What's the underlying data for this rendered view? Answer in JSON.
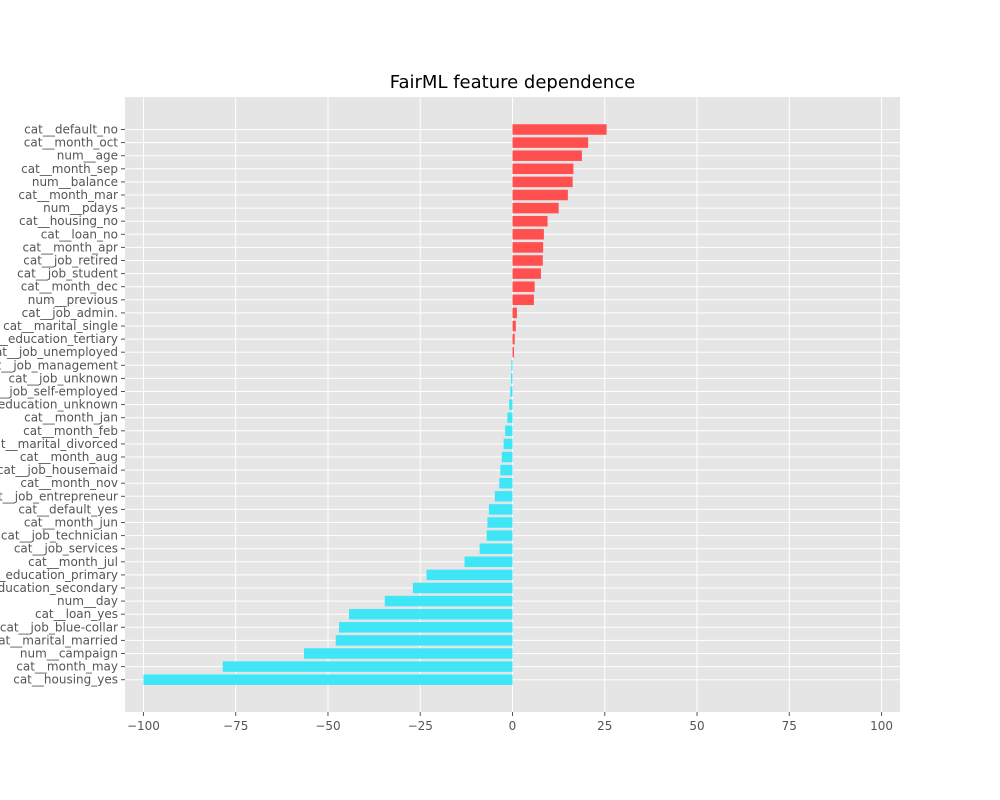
{
  "chart_data": {
    "type": "bar",
    "orientation": "horizontal",
    "title": "FairML feature dependence",
    "xlabel": "",
    "ylabel": "",
    "xlim": [
      -105,
      105
    ],
    "xticks": [
      -100,
      -75,
      -50,
      -25,
      0,
      25,
      50,
      75,
      100
    ],
    "grid": true,
    "colors": {
      "positive": "#ff4f4f",
      "negative": "#3ee6f8",
      "background": "#e5e5e5",
      "grid": "#ffffff"
    },
    "categories": [
      "cat__default_no",
      "cat__month_oct",
      "num__age",
      "cat__month_sep",
      "num__balance",
      "cat__month_mar",
      "num__pdays",
      "cat__housing_no",
      "cat__loan_no",
      "cat__month_apr",
      "cat__job_retired",
      "cat__job_student",
      "cat__month_dec",
      "num__previous",
      "cat__job_admin.",
      "cat__marital_single",
      "cat__education_tertiary",
      "cat__job_unemployed",
      "cat__job_management",
      "cat__job_unknown",
      "cat__job_self-employed",
      "cat__education_unknown",
      "cat__month_jan",
      "cat__month_feb",
      "cat__marital_divorced",
      "cat__month_aug",
      "cat__job_housemaid",
      "cat__month_nov",
      "cat__job_entrepreneur",
      "cat__default_yes",
      "cat__month_jun",
      "cat__job_technician",
      "cat__job_services",
      "cat__month_jul",
      "cat__education_primary",
      "cat__education_secondary",
      "num__day",
      "cat__loan_yes",
      "cat__job_blue-collar",
      "cat__marital_married",
      "num__campaign",
      "cat__month_may",
      "cat__housing_yes"
    ],
    "values": [
      25.5,
      20.5,
      18.8,
      16.5,
      16.3,
      15.0,
      12.5,
      9.5,
      8.5,
      8.3,
      8.2,
      7.7,
      6.0,
      5.8,
      1.2,
      0.9,
      0.6,
      0.4,
      -0.3,
      -0.4,
      -0.6,
      -0.9,
      -1.4,
      -2.0,
      -2.4,
      -2.9,
      -3.3,
      -3.6,
      -4.8,
      -6.4,
      -6.8,
      -7.0,
      -8.9,
      -13.0,
      -23.3,
      -27.0,
      -34.6,
      -44.3,
      -47.0,
      -47.9,
      -56.5,
      -78.5,
      -100.0
    ]
  }
}
